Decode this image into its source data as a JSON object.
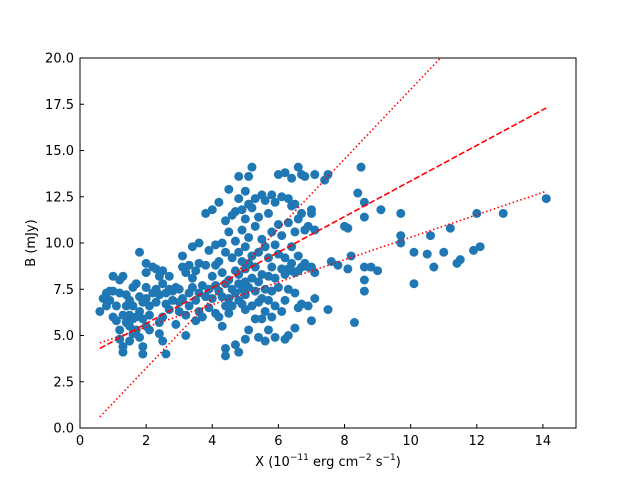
{
  "chart_data": {
    "type": "scatter",
    "xlabel": "X (10^-11 erg cm^-2 s^-1)",
    "xlabel_parts": {
      "pre": "X (10",
      "sup1": "−11",
      "mid1": " erg cm",
      "sup2": "−2",
      "mid2": " s",
      "sup3": "−1",
      "post": ")"
    },
    "ylabel": "B (mJy)",
    "xlim": [
      0,
      15
    ],
    "ylim": [
      0,
      20
    ],
    "xticks": [
      0,
      2,
      4,
      6,
      8,
      10,
      12,
      14
    ],
    "yticks": [
      0.0,
      2.5,
      5.0,
      7.5,
      10.0,
      12.5,
      15.0,
      17.5,
      20.0
    ],
    "ytick_labels": [
      "0.0",
      "2.5",
      "5.0",
      "7.5",
      "10.0",
      "12.5",
      "15.0",
      "17.5",
      "20.0"
    ],
    "point_color": "#1f77b4",
    "fit_color": "#ff0000",
    "fit_lines": [
      {
        "style": "dashed",
        "x": [
          0.6,
          14.1
        ],
        "y": [
          4.3,
          17.3
        ]
      },
      {
        "style": "dotted",
        "x": [
          0.6,
          10.9
        ],
        "y": [
          0.6,
          20.0
        ]
      },
      {
        "style": "dotted",
        "x": [
          0.6,
          14.1
        ],
        "y": [
          4.6,
          12.8
        ]
      }
    ],
    "points": [
      [
        0.6,
        6.3
      ],
      [
        0.7,
        7.0
      ],
      [
        0.8,
        7.3
      ],
      [
        0.8,
        6.6
      ],
      [
        0.9,
        7.4
      ],
      [
        0.9,
        6.9
      ],
      [
        1.0,
        7.4
      ],
      [
        1.0,
        8.2
      ],
      [
        1.0,
        6.0
      ],
      [
        1.1,
        6.6
      ],
      [
        1.1,
        5.8
      ],
      [
        1.2,
        7.3
      ],
      [
        1.2,
        8.0
      ],
      [
        1.2,
        4.8
      ],
      [
        1.2,
        5.3
      ],
      [
        1.3,
        8.2
      ],
      [
        1.3,
        6.1
      ],
      [
        1.3,
        4.1
      ],
      [
        1.3,
        4.4
      ],
      [
        1.4,
        7.2
      ],
      [
        1.4,
        5.7
      ],
      [
        1.4,
        6.6
      ],
      [
        1.5,
        6.9
      ],
      [
        1.5,
        6.1
      ],
      [
        1.5,
        5.5
      ],
      [
        1.5,
        4.7
      ],
      [
        1.6,
        7.6
      ],
      [
        1.6,
        5.1
      ],
      [
        1.6,
        6.6
      ],
      [
        1.6,
        5.9
      ],
      [
        1.7,
        7.8
      ],
      [
        1.7,
        6.0
      ],
      [
        1.7,
        5.3
      ],
      [
        1.8,
        6.3
      ],
      [
        1.8,
        4.9
      ],
      [
        1.8,
        7.1
      ],
      [
        1.8,
        9.5
      ],
      [
        1.9,
        5.9
      ],
      [
        1.9,
        6.8
      ],
      [
        1.9,
        4.4
      ],
      [
        1.9,
        4.0
      ],
      [
        2.0,
        8.9
      ],
      [
        2.0,
        8.4
      ],
      [
        2.0,
        7.0
      ],
      [
        2.0,
        7.6
      ],
      [
        2.0,
        5.5
      ],
      [
        2.1,
        6.1
      ],
      [
        2.1,
        6.6
      ],
      [
        2.1,
        5.3
      ],
      [
        2.2,
        8.7
      ],
      [
        2.2,
        7.3
      ],
      [
        2.3,
        8.6
      ],
      [
        2.3,
        6.8
      ],
      [
        2.3,
        7.5
      ],
      [
        2.4,
        8.2
      ],
      [
        2.4,
        7.2
      ],
      [
        2.4,
        5.7
      ],
      [
        2.4,
        5.1
      ],
      [
        2.5,
        8.5
      ],
      [
        2.5,
        7.8
      ],
      [
        2.5,
        6.0
      ],
      [
        2.5,
        4.7
      ],
      [
        2.6,
        6.7
      ],
      [
        2.6,
        7.3
      ],
      [
        2.6,
        4.0
      ],
      [
        2.7,
        7.5
      ],
      [
        2.7,
        6.4
      ],
      [
        2.7,
        8.2
      ],
      [
        2.8,
        6.9
      ],
      [
        2.8,
        7.4
      ],
      [
        2.9,
        5.6
      ],
      [
        2.9,
        7.6
      ],
      [
        3.0,
        6.8
      ],
      [
        3.0,
        6.3
      ],
      [
        3.0,
        7.5
      ],
      [
        3.1,
        7.0
      ],
      [
        3.1,
        9.3
      ],
      [
        3.1,
        8.7
      ],
      [
        3.2,
        8.4
      ],
      [
        3.2,
        6.1
      ],
      [
        3.2,
        5.0
      ],
      [
        3.3,
        8.8
      ],
      [
        3.3,
        7.3
      ],
      [
        3.3,
        6.6
      ],
      [
        3.4,
        9.8
      ],
      [
        3.4,
        8.1
      ],
      [
        3.4,
        7.6
      ],
      [
        3.5,
        8.5
      ],
      [
        3.5,
        6.9
      ],
      [
        3.5,
        5.8
      ],
      [
        3.6,
        10.0
      ],
      [
        3.6,
        8.9
      ],
      [
        3.6,
        7.3
      ],
      [
        3.6,
        6.3
      ],
      [
        3.7,
        7.7
      ],
      [
        3.7,
        6.0
      ],
      [
        3.8,
        11.6
      ],
      [
        3.8,
        8.8
      ],
      [
        3.8,
        7.1
      ],
      [
        3.9,
        9.6
      ],
      [
        3.9,
        7.5
      ],
      [
        3.9,
        6.5
      ],
      [
        4.0,
        11.8
      ],
      [
        4.0,
        8.2
      ],
      [
        4.0,
        7.0
      ],
      [
        4.1,
        9.9
      ],
      [
        4.1,
        8.8
      ],
      [
        4.1,
        7.7
      ],
      [
        4.1,
        6.2
      ],
      [
        4.2,
        12.2
      ],
      [
        4.2,
        9.0
      ],
      [
        4.2,
        7.4
      ],
      [
        4.2,
        6.0
      ],
      [
        4.3,
        10.0
      ],
      [
        4.3,
        8.4
      ],
      [
        4.3,
        7.1
      ],
      [
        4.3,
        5.5
      ],
      [
        4.4,
        11.2
      ],
      [
        4.4,
        9.5
      ],
      [
        4.4,
        7.8
      ],
      [
        4.4,
        6.6
      ],
      [
        4.4,
        4.3
      ],
      [
        4.4,
        3.9
      ],
      [
        4.5,
        12.9
      ],
      [
        4.5,
        10.6
      ],
      [
        4.5,
        8.0
      ],
      [
        4.5,
        7.0
      ],
      [
        4.5,
        6.2
      ],
      [
        4.6,
        11.5
      ],
      [
        4.6,
        9.2
      ],
      [
        4.6,
        7.5
      ],
      [
        4.6,
        6.6
      ],
      [
        4.7,
        11.7
      ],
      [
        4.7,
        10.1
      ],
      [
        4.7,
        8.5
      ],
      [
        4.7,
        7.3
      ],
      [
        4.7,
        4.5
      ],
      [
        4.8,
        13.6
      ],
      [
        4.8,
        12.4
      ],
      [
        4.8,
        9.5
      ],
      [
        4.8,
        8.3
      ],
      [
        4.8,
        7.8
      ],
      [
        4.8,
        6.9
      ],
      [
        4.8,
        4.1
      ],
      [
        4.9,
        11.8
      ],
      [
        4.9,
        10.7
      ],
      [
        4.9,
        9.0
      ],
      [
        4.9,
        7.5
      ],
      [
        4.9,
        6.7
      ],
      [
        5.0,
        12.8
      ],
      [
        5.0,
        11.3
      ],
      [
        5.0,
        9.8
      ],
      [
        5.0,
        8.6
      ],
      [
        5.0,
        7.9
      ],
      [
        5.0,
        7.2
      ],
      [
        5.0,
        6.4
      ],
      [
        5.0,
        4.8
      ],
      [
        5.1,
        13.6
      ],
      [
        5.1,
        12.1
      ],
      [
        5.1,
        10.3
      ],
      [
        5.1,
        8.9
      ],
      [
        5.1,
        7.6
      ],
      [
        5.1,
        5.3
      ],
      [
        5.2,
        14.1
      ],
      [
        5.2,
        11.9
      ],
      [
        5.2,
        9.3
      ],
      [
        5.2,
        8.1
      ],
      [
        5.2,
        6.6
      ],
      [
        5.3,
        12.4
      ],
      [
        5.3,
        10.9
      ],
      [
        5.3,
        8.7
      ],
      [
        5.3,
        7.4
      ],
      [
        5.3,
        5.9
      ],
      [
        5.4,
        11.4
      ],
      [
        5.4,
        9.5
      ],
      [
        5.4,
        7.9
      ],
      [
        5.4,
        6.8
      ],
      [
        5.4,
        4.9
      ],
      [
        5.5,
        12.6
      ],
      [
        5.5,
        10.2
      ],
      [
        5.5,
        8.3
      ],
      [
        5.5,
        7.0
      ],
      [
        5.5,
        5.9
      ],
      [
        5.6,
        12.3
      ],
      [
        5.6,
        9.8
      ],
      [
        5.6,
        7.5
      ],
      [
        5.6,
        6.3
      ],
      [
        5.6,
        4.7
      ],
      [
        5.7,
        11.6
      ],
      [
        5.7,
        9.2
      ],
      [
        5.7,
        8.2
      ],
      [
        5.7,
        6.9
      ],
      [
        5.7,
        5.3
      ],
      [
        5.8,
        12.6
      ],
      [
        5.8,
        10.6
      ],
      [
        5.8,
        8.7
      ],
      [
        5.8,
        7.4
      ],
      [
        5.8,
        6.0
      ],
      [
        5.9,
        12.2
      ],
      [
        5.9,
        9.9
      ],
      [
        5.9,
        8.1
      ],
      [
        5.9,
        6.6
      ],
      [
        5.9,
        4.9
      ],
      [
        6.0,
        13.7
      ],
      [
        6.0,
        11.0
      ],
      [
        6.0,
        9.4
      ],
      [
        6.0,
        7.6
      ],
      [
        6.1,
        12.5
      ],
      [
        6.1,
        10.4
      ],
      [
        6.1,
        8.6
      ],
      [
        6.1,
        6.3
      ],
      [
        6.2,
        13.8
      ],
      [
        6.2,
        9.2
      ],
      [
        6.2,
        8.3
      ],
      [
        6.2,
        6.9
      ],
      [
        6.2,
        4.8
      ],
      [
        6.3,
        12.4
      ],
      [
        6.3,
        11.1
      ],
      [
        6.3,
        8.6
      ],
      [
        6.3,
        7.5
      ],
      [
        6.3,
        5.0
      ],
      [
        6.4,
        13.5
      ],
      [
        6.4,
        12.0
      ],
      [
        6.4,
        9.8
      ],
      [
        6.4,
        8.9
      ],
      [
        6.4,
        8.5
      ],
      [
        6.5,
        12.1
      ],
      [
        6.5,
        10.6
      ],
      [
        6.5,
        8.4
      ],
      [
        6.5,
        7.3
      ],
      [
        6.5,
        5.4
      ],
      [
        6.6,
        14.1
      ],
      [
        6.6,
        11.3
      ],
      [
        6.6,
        9.3
      ],
      [
        6.6,
        8.5
      ],
      [
        6.6,
        6.5
      ],
      [
        6.7,
        13.7
      ],
      [
        6.7,
        11.6
      ],
      [
        6.7,
        8.7
      ],
      [
        6.7,
        6.7
      ],
      [
        6.8,
        13.6
      ],
      [
        6.8,
        10.7
      ],
      [
        6.8,
        8.9
      ],
      [
        6.9,
        10.9
      ],
      [
        6.9,
        8.7
      ],
      [
        6.9,
        6.6
      ],
      [
        7.0,
        11.8
      ],
      [
        7.0,
        11.6
      ],
      [
        7.0,
        8.7
      ],
      [
        7.0,
        5.8
      ],
      [
        7.1,
        13.7
      ],
      [
        7.1,
        10.7
      ],
      [
        7.1,
        8.4
      ],
      [
        7.1,
        7.0
      ],
      [
        7.4,
        13.4
      ],
      [
        7.5,
        13.7
      ],
      [
        7.5,
        6.4
      ],
      [
        7.6,
        9.0
      ],
      [
        7.8,
        8.8
      ],
      [
        8.0,
        10.9
      ],
      [
        8.1,
        8.6
      ],
      [
        8.1,
        10.8
      ],
      [
        8.2,
        9.3
      ],
      [
        8.3,
        5.7
      ],
      [
        8.4,
        12.7
      ],
      [
        8.5,
        14.1
      ],
      [
        8.6,
        12.2
      ],
      [
        8.6,
        11.4
      ],
      [
        8.6,
        8.7
      ],
      [
        8.6,
        7.4
      ],
      [
        8.6,
        8.0
      ],
      [
        8.8,
        8.7
      ],
      [
        9.0,
        8.5
      ],
      [
        9.1,
        11.8
      ],
      [
        9.7,
        11.6
      ],
      [
        9.7,
        10.4
      ],
      [
        9.7,
        10.0
      ],
      [
        10.1,
        9.5
      ],
      [
        10.1,
        7.8
      ],
      [
        10.5,
        9.4
      ],
      [
        10.6,
        10.4
      ],
      [
        10.7,
        8.7
      ],
      [
        11.0,
        9.5
      ],
      [
        11.2,
        10.8
      ],
      [
        11.4,
        8.9
      ],
      [
        11.5,
        9.1
      ],
      [
        11.9,
        9.6
      ],
      [
        12.0,
        11.6
      ],
      [
        12.1,
        9.8
      ],
      [
        12.8,
        11.6
      ],
      [
        14.1,
        12.4
      ]
    ]
  }
}
